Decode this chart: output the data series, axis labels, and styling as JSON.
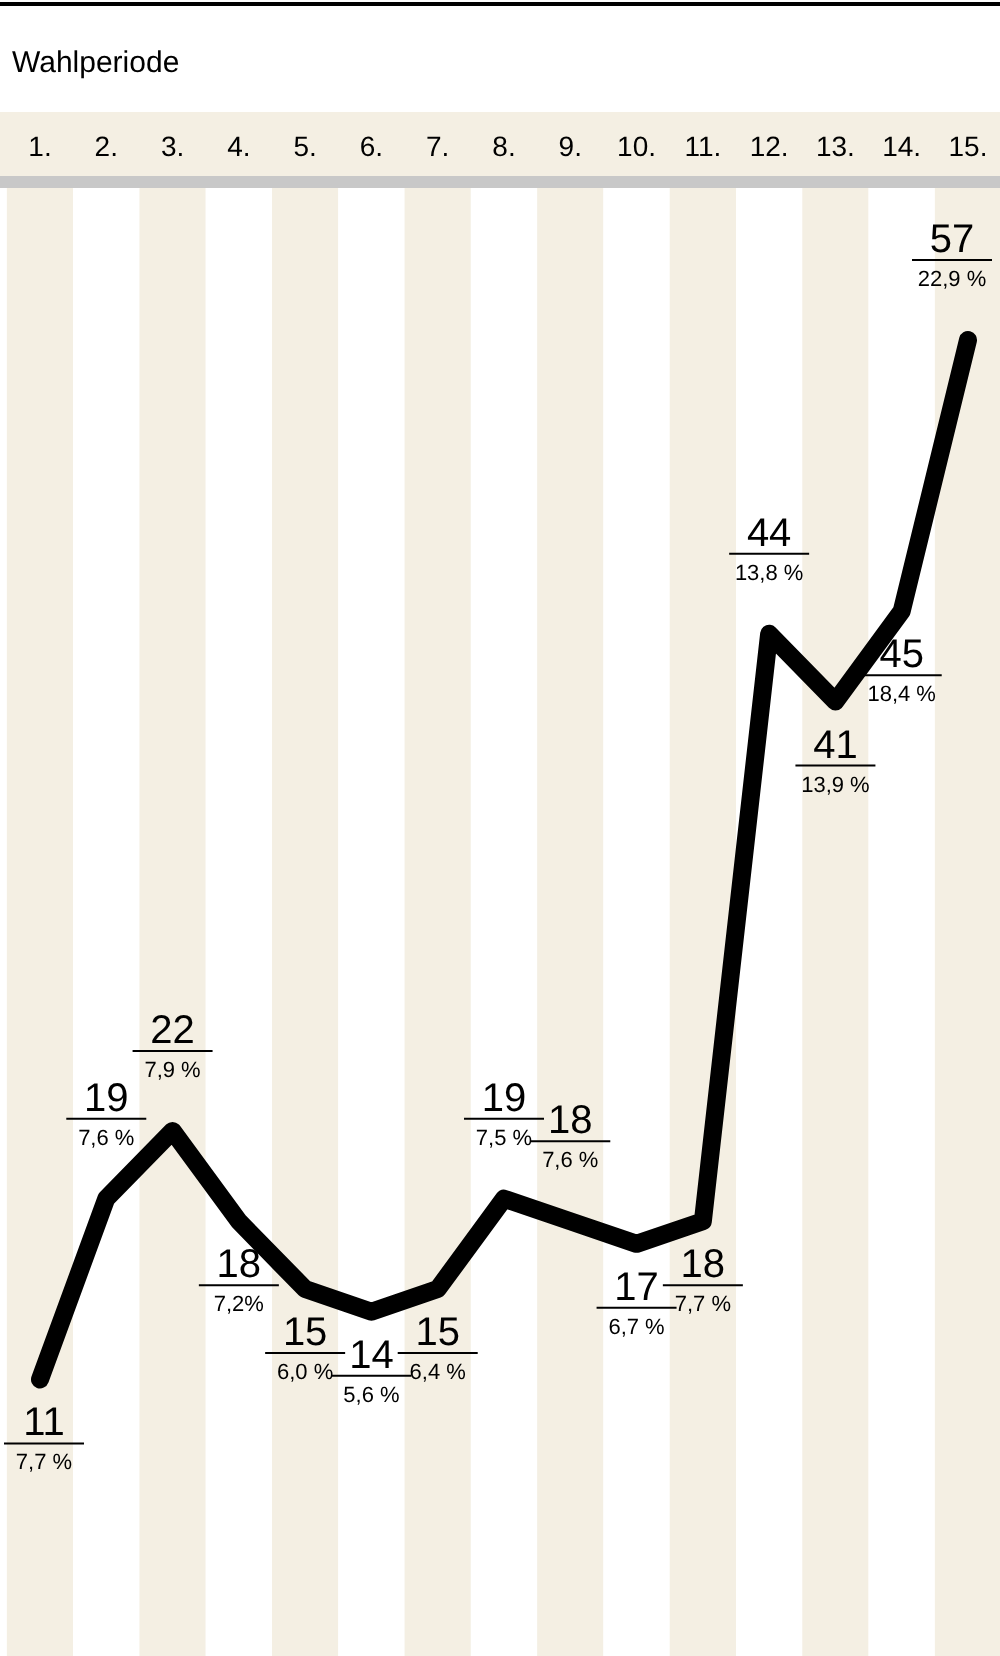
{
  "chart_data": {
    "type": "line",
    "xlabel": "Wahlperiode",
    "categories": [
      "1.",
      "2.",
      "3.",
      "4.",
      "5.",
      "6.",
      "7.",
      "8.",
      "9.",
      "10.",
      "11.",
      "12.",
      "13.",
      "14.",
      "15."
    ],
    "series": [
      {
        "color": "#000000",
        "values": [
          11,
          19,
          22,
          18,
          15,
          14,
          15,
          19,
          18,
          17,
          18,
          44,
          41,
          45,
          57
        ]
      }
    ],
    "data_labels": true,
    "line_style": "solid",
    "annotations": [
      "7,7 %",
      "7,6 %",
      "7,9 %",
      "7,2%",
      "6,0 %",
      "5,6 %",
      "6,4 %",
      "7,5 %",
      "7,6 %",
      "6,7 %",
      "7,7 %",
      "13,8 %",
      "13,9 %",
      "18,4 %",
      "22,9 %"
    ]
  }
}
